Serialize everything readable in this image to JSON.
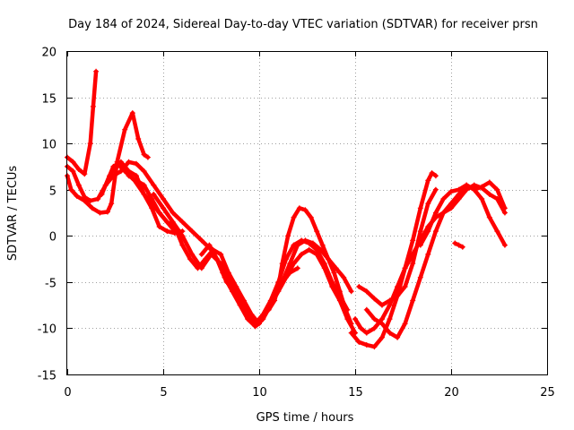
{
  "chart_data": {
    "type": "scatter",
    "title": "Day 184 of 2024, Sidereal Day-to-day VTEC variation (SDTVAR) for receiver prsn",
    "xlabel": "GPS time / hours",
    "ylabel": "SDTVAR / TECUs",
    "xlim": [
      0,
      25
    ],
    "ylim": [
      -15,
      20
    ],
    "x_ticks": [
      0,
      5,
      10,
      15,
      20,
      25
    ],
    "y_ticks": [
      -15,
      -10,
      -5,
      0,
      5,
      10,
      15,
      20
    ],
    "x_tick_labels": [
      "0",
      "5",
      "10",
      "15",
      "20",
      "25"
    ],
    "y_tick_labels": [
      "-15",
      "-10",
      "-5",
      "0",
      "5",
      "10",
      "15",
      "20"
    ],
    "grid": true,
    "marker": "+",
    "color": "#ff0000",
    "series": [
      {
        "name": "track-1",
        "x": [
          0.0,
          0.3,
          0.6,
          0.9,
          1.2,
          1.35,
          1.5
        ],
        "y": [
          8.5,
          8.0,
          7.2,
          6.7,
          10.0,
          14.0,
          17.8
        ]
      },
      {
        "name": "track-2",
        "x": [
          0.0,
          0.2,
          0.5,
          0.9,
          1.3,
          1.7,
          2.1,
          2.3,
          2.6,
          3.0,
          3.4,
          3.7,
          4.0,
          4.2
        ],
        "y": [
          6.5,
          5.0,
          4.3,
          3.8,
          3.0,
          2.5,
          2.6,
          3.5,
          8.0,
          11.5,
          13.3,
          10.5,
          8.8,
          8.5
        ]
      },
      {
        "name": "track-3",
        "x": [
          0.0,
          0.3,
          0.6,
          0.9,
          1.2,
          1.6,
          2.0,
          2.4,
          2.8,
          3.2,
          3.6,
          4.0,
          4.4,
          4.8,
          5.2,
          5.6,
          6.0
        ],
        "y": [
          7.5,
          7.0,
          5.5,
          4.2,
          3.8,
          4.0,
          5.5,
          7.5,
          8.0,
          7.0,
          6.5,
          4.5,
          3.0,
          1.0,
          0.5,
          0.3,
          0.5
        ]
      },
      {
        "name": "track-4",
        "x": [
          1.8,
          2.2,
          2.6,
          3.0,
          3.5,
          4.0,
          4.4,
          4.8,
          5.2,
          5.6
        ],
        "y": [
          4.5,
          6.5,
          7.8,
          7.0,
          6.0,
          4.5,
          3.5,
          2.5,
          1.5,
          0.5
        ]
      },
      {
        "name": "track-5",
        "x": [
          2.0,
          2.4,
          2.8,
          3.2,
          3.6,
          4.0,
          4.5,
          5.0,
          5.5,
          6.0,
          6.5,
          7.0,
          7.5,
          7.8,
          8.1,
          8.3
        ],
        "y": [
          5.5,
          6.5,
          7.0,
          8.0,
          7.8,
          7.0,
          5.5,
          4.0,
          2.5,
          1.5,
          0.5,
          -0.5,
          -1.5,
          -2.5,
          -4.0,
          -5.0
        ]
      },
      {
        "name": "track-6",
        "x": [
          3.2,
          3.6,
          4.0,
          4.4,
          4.8,
          5.2,
          5.6,
          6.0,
          6.4,
          6.8,
          7.2,
          7.6,
          8.0,
          8.4,
          8.8,
          9.2,
          9.6,
          10.0,
          10.4,
          10.8,
          11.2,
          11.6,
          12.0
        ],
        "y": [
          6.5,
          6.0,
          5.5,
          4.0,
          2.5,
          1.5,
          1.0,
          -1.0,
          -2.5,
          -3.5,
          -2.5,
          -1.5,
          -2.0,
          -4.0,
          -5.5,
          -7.0,
          -8.5,
          -9.5,
          -8.0,
          -6.5,
          -5.0,
          -4.0,
          -3.5
        ]
      },
      {
        "name": "track-7",
        "x": [
          4.5,
          5.0,
          5.5,
          6.0,
          6.5,
          7.0,
          7.5,
          8.0,
          8.5,
          9.0,
          9.4,
          9.8,
          10.2,
          10.6,
          11.0,
          11.4,
          11.8,
          12.2,
          12.6,
          13.0,
          13.4,
          13.8,
          14.2,
          14.6
        ],
        "y": [
          4.5,
          3.0,
          1.5,
          0.0,
          -2.0,
          -3.5,
          -2.0,
          -3.0,
          -5.0,
          -7.0,
          -8.5,
          -9.5,
          -8.5,
          -7.0,
          -5.0,
          -2.5,
          -1.0,
          -0.5,
          -0.8,
          -1.5,
          -3.0,
          -5.0,
          -6.5,
          -8.0
        ]
      },
      {
        "name": "track-8",
        "x": [
          7.0,
          7.4,
          7.8,
          8.2,
          8.6,
          9.0,
          9.4,
          9.8,
          10.2,
          10.6,
          11.0,
          11.4,
          11.8,
          12.2,
          12.6,
          13.0,
          13.4,
          13.8,
          14.2,
          14.6,
          15.0
        ],
        "y": [
          -2.0,
          -1.0,
          -2.5,
          -4.5,
          -6.0,
          -7.5,
          -9.0,
          -9.8,
          -9.0,
          -7.5,
          -6.0,
          -4.5,
          -3.0,
          -2.0,
          -1.5,
          -2.0,
          -3.5,
          -5.5,
          -7.0,
          -9.0,
          -10.5
        ]
      },
      {
        "name": "track-9",
        "x": [
          10.5,
          10.8,
          11.0,
          11.2,
          11.5,
          11.8,
          12.1,
          12.4,
          12.7,
          13.0,
          13.3,
          13.6,
          13.9,
          14.2,
          14.5,
          14.8
        ],
        "y": [
          -8.0,
          -7.0,
          -5.5,
          -3.0,
          0.0,
          2.0,
          3.0,
          2.8,
          2.0,
          0.5,
          -1.0,
          -2.5,
          -4.0,
          -6.0,
          -8.0,
          -9.5
        ]
      },
      {
        "name": "track-10",
        "x": [
          10.8,
          11.2,
          11.6,
          12.0,
          12.4,
          12.8,
          13.2,
          13.6,
          14.0,
          14.4,
          14.8
        ],
        "y": [
          -6.5,
          -5.0,
          -3.0,
          -1.0,
          -0.5,
          -0.8,
          -1.5,
          -2.5,
          -3.5,
          -4.5,
          -6.0
        ]
      },
      {
        "name": "track-11",
        "x": [
          14.8,
          15.2,
          15.6,
          16.0,
          16.4,
          16.8,
          17.2,
          17.6,
          18.0,
          18.4,
          18.8,
          19.0,
          19.2
        ],
        "y": [
          -10.5,
          -11.5,
          -11.8,
          -12.0,
          -11.0,
          -9.0,
          -6.5,
          -3.5,
          -0.5,
          3.0,
          6.0,
          6.8,
          6.5
        ]
      },
      {
        "name": "track-12",
        "x": [
          15.0,
          15.3,
          15.6,
          16.0,
          16.4,
          16.8,
          17.2,
          17.6,
          18.0,
          18.4,
          18.8,
          19.2,
          19.6,
          20.0,
          20.4,
          20.8,
          21.2,
          21.6,
          22.0,
          22.4,
          22.8
        ],
        "y": [
          -9.0,
          -10.0,
          -10.5,
          -10.0,
          -9.0,
          -7.5,
          -5.5,
          -3.5,
          -2.0,
          -0.5,
          1.0,
          2.0,
          2.5,
          3.0,
          4.0,
          5.0,
          5.5,
          5.2,
          4.5,
          4.0,
          2.5
        ]
      },
      {
        "name": "track-13",
        "x": [
          15.2,
          15.6,
          16.0,
          16.4,
          16.8,
          17.2,
          17.6,
          18.0,
          18.4,
          18.8,
          19.2
        ],
        "y": [
          -5.5,
          -6.0,
          -6.8,
          -7.5,
          -7.0,
          -6.5,
          -5.5,
          -3.0,
          0.5,
          3.5,
          5.0
        ]
      },
      {
        "name": "track-14",
        "x": [
          15.6,
          16.0,
          16.4,
          16.8,
          17.2,
          17.6,
          18.0,
          18.4,
          18.8,
          19.2,
          19.6,
          20.0,
          20.4,
          20.8,
          21.2,
          21.6,
          22.0,
          22.4,
          22.8
        ],
        "y": [
          -8.0,
          -9.0,
          -9.5,
          -10.5,
          -11.0,
          -9.5,
          -7.0,
          -4.5,
          -2.0,
          0.5,
          2.5,
          3.5,
          4.5,
          5.5,
          5.0,
          4.0,
          2.0,
          0.5,
          -1.0
        ]
      },
      {
        "name": "track-15",
        "x": [
          18.4,
          18.8,
          19.2,
          19.6,
          20.0,
          20.4,
          20.8,
          21.2,
          21.6,
          22.0,
          22.4,
          22.8
        ],
        "y": [
          -1.0,
          0.5,
          2.5,
          4.0,
          4.8,
          5.0,
          5.5,
          5.0,
          5.3,
          5.8,
          5.0,
          3.0
        ]
      },
      {
        "name": "track-16",
        "x": [
          20.2,
          20.4,
          20.6
        ],
        "y": [
          -0.8,
          -1.0,
          -1.2
        ]
      }
    ]
  }
}
